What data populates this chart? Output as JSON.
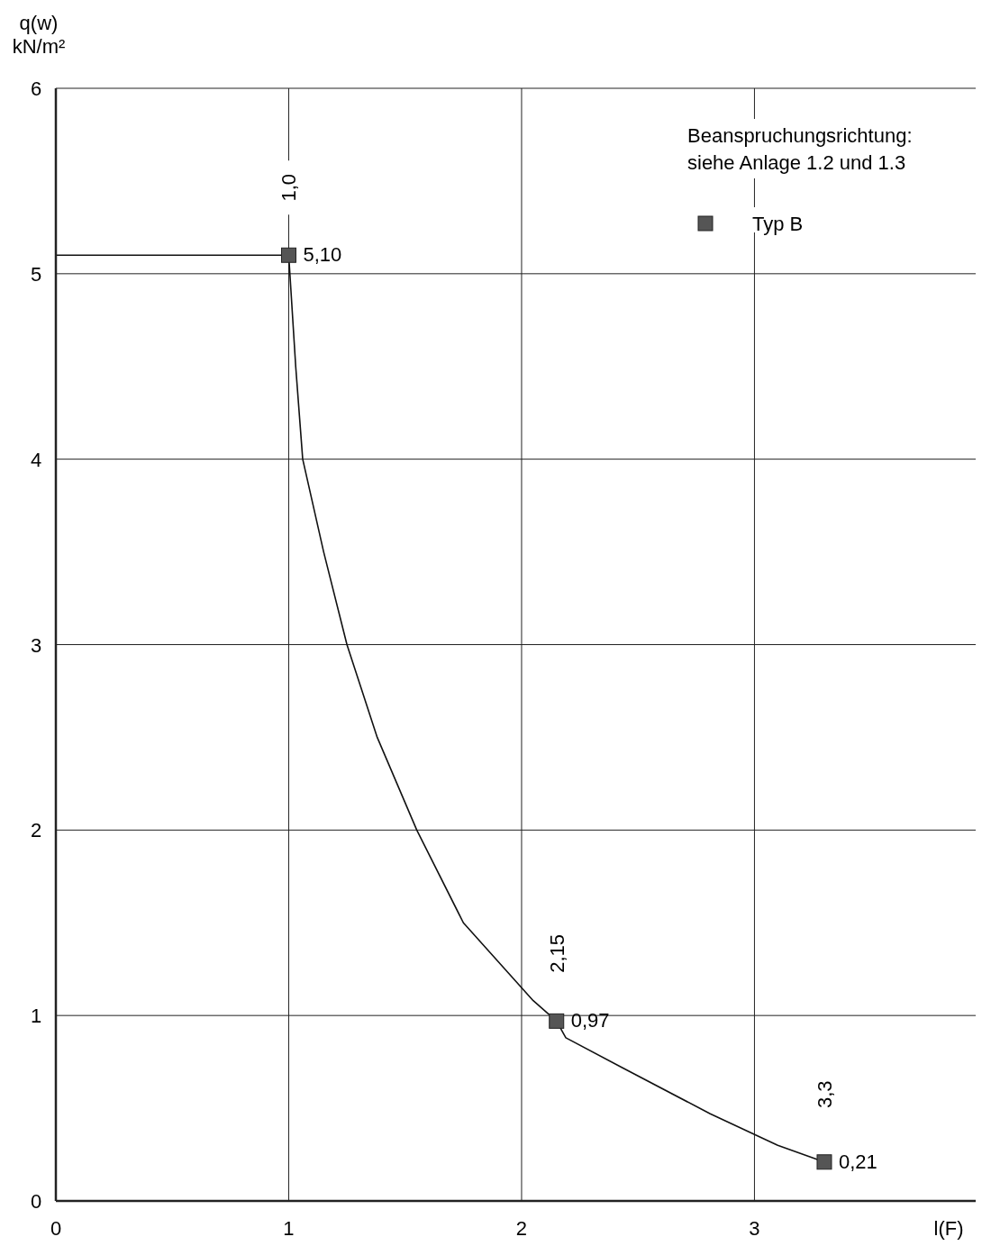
{
  "chart_data": {
    "type": "line",
    "xlabel": "l(F)",
    "ylabel": "q(w)\nkN/m²",
    "xlim": [
      0,
      3.95
    ],
    "ylim": [
      0,
      6
    ],
    "xticks": [
      0,
      1,
      2,
      3
    ],
    "yticks": [
      0,
      1,
      2,
      3,
      4,
      5,
      6
    ],
    "grid": true,
    "legend": "top right",
    "series": [
      {
        "color": "#111111",
        "line_style": "solid",
        "marker": "none",
        "x": [
          0,
          1,
          1.03,
          1.06,
          1.15,
          1.25,
          1.38,
          1.55,
          1.75,
          2.05,
          2.15,
          2.19,
          2.43,
          2.81,
          3.1,
          3.3
        ],
        "values": [
          5.1,
          5.1,
          4.5,
          4.0,
          3.5,
          3.0,
          2.5,
          2.0,
          1.5,
          1.08,
          0.97,
          0.88,
          0.72,
          0.47,
          0.3,
          0.21
        ]
      },
      {
        "type": "scatter",
        "name": "Typ B",
        "color": "#555555",
        "marker": "square",
        "x": [
          1,
          2.15,
          3.3
        ],
        "values": [
          5.1,
          0.97,
          0.21
        ],
        "value_labels": [
          "5,10",
          "0,97",
          "0,21"
        ]
      }
    ],
    "annotations": [
      "1,0",
      "2,15",
      "3,3",
      "Beanspruchungsrichtung:\nsiehe Anlage 1.2 und 1.3"
    ]
  }
}
